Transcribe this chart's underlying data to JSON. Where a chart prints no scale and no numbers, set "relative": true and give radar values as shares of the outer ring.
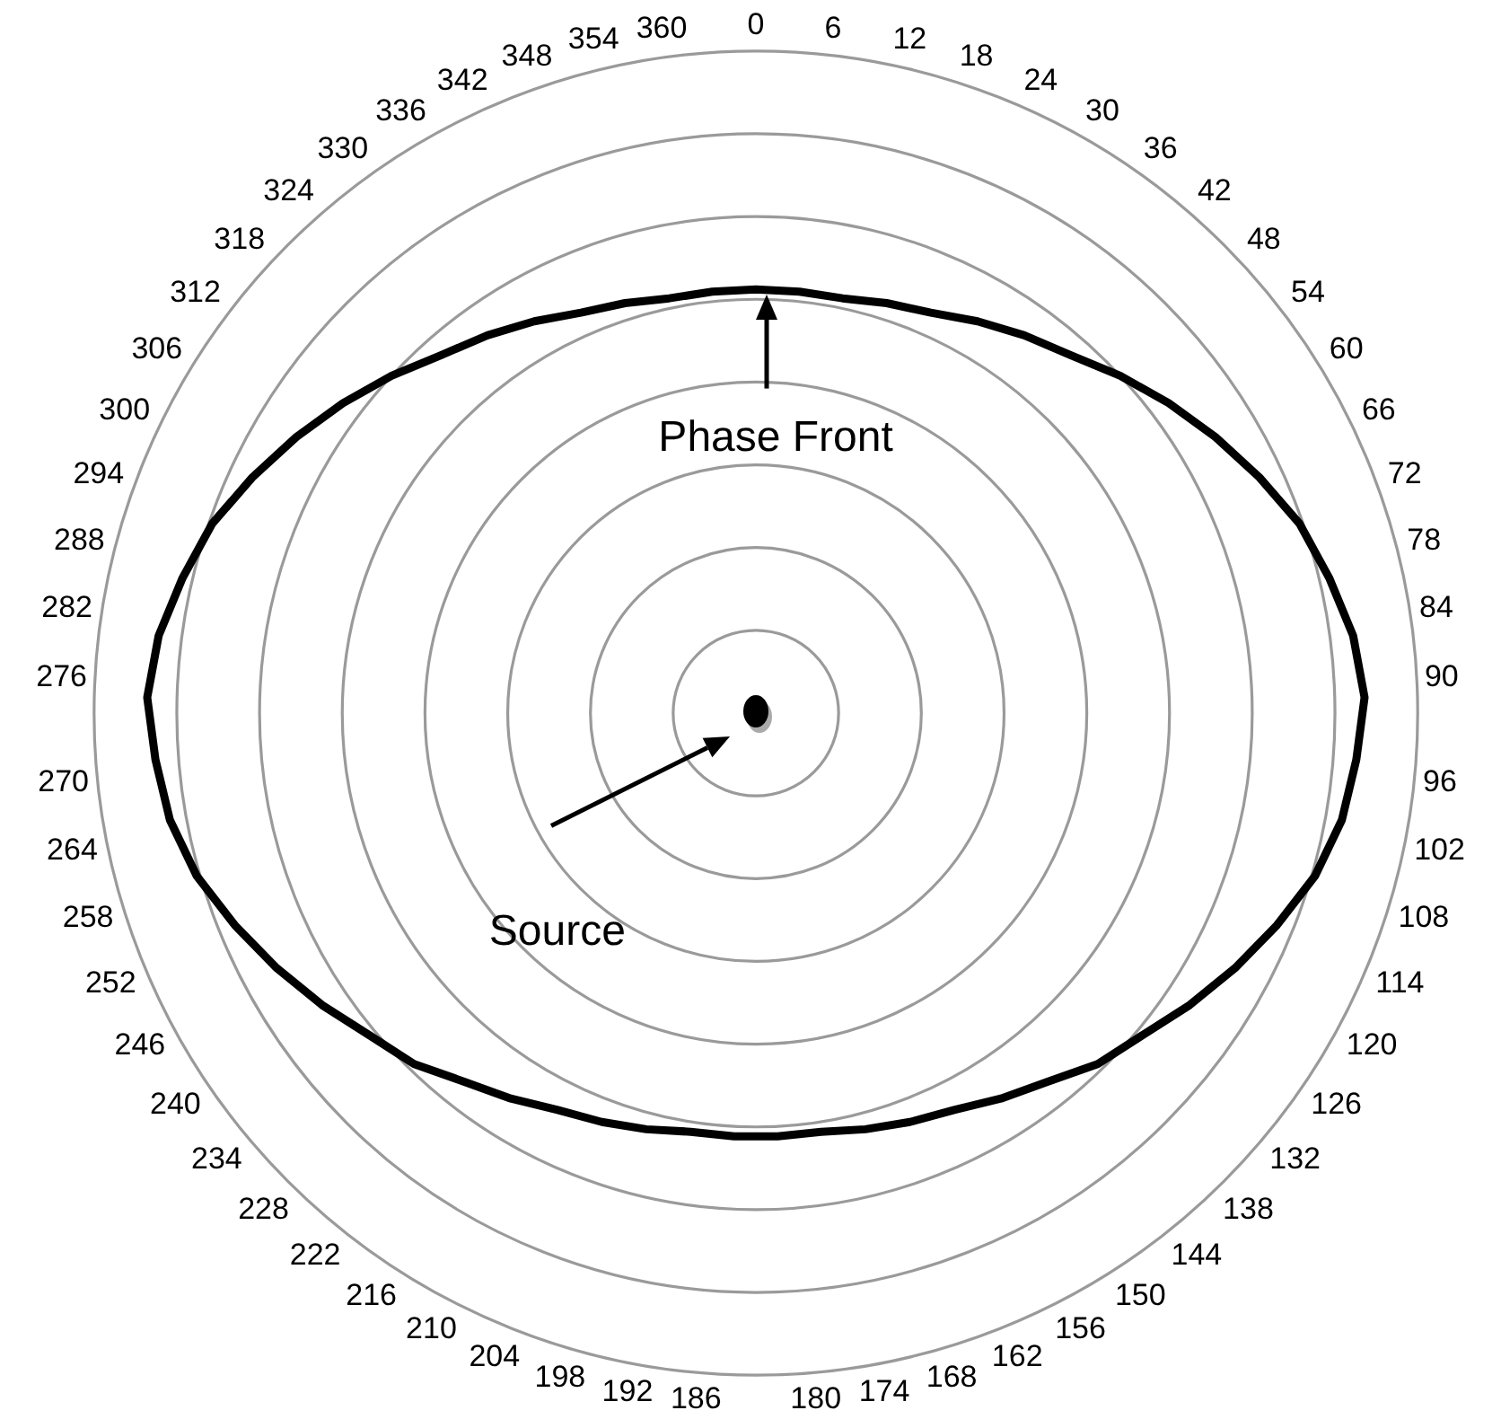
{
  "chart_data": {
    "type": "radar",
    "relative": true,
    "grid": true,
    "legend": false,
    "marker": "none",
    "line_style": "solid",
    "categories": [
      "0",
      "6",
      "12",
      "18",
      "24",
      "30",
      "36",
      "42",
      "48",
      "54",
      "60",
      "66",
      "72",
      "78",
      "84",
      "90",
      "96",
      "102",
      "108",
      "114",
      "120",
      "126",
      "132",
      "138",
      "144",
      "150",
      "156",
      "162",
      "168",
      "174",
      "180",
      "186",
      "192",
      "198",
      "204",
      "210",
      "216",
      "222",
      "228",
      "234",
      "240",
      "246",
      "252",
      "258",
      "264",
      "270",
      "276",
      "282",
      "288",
      "294",
      "300",
      "306",
      "312",
      "318",
      "324",
      "330",
      "336",
      "342",
      "348",
      "354",
      "360"
    ],
    "series": [
      {
        "color": "#000000",
        "values": [
          0.64,
          0.64,
          0.64,
          0.65,
          0.66,
          0.68,
          0.7,
          0.72,
          0.75,
          0.78,
          0.81,
          0.84,
          0.87,
          0.89,
          0.91,
          0.92,
          0.91,
          0.9,
          0.88,
          0.85,
          0.82,
          0.79,
          0.76,
          0.74,
          0.71,
          0.69,
          0.67,
          0.66,
          0.65,
          0.64,
          0.64,
          0.64,
          0.64,
          0.65,
          0.66,
          0.67,
          0.69,
          0.71,
          0.74,
          0.76,
          0.79,
          0.82,
          0.85,
          0.88,
          0.9,
          0.91,
          0.92,
          0.91,
          0.89,
          0.87,
          0.84,
          0.81,
          0.78,
          0.75,
          0.72,
          0.7,
          0.68,
          0.66,
          0.65,
          0.64,
          0.64
        ]
      }
    ],
    "annotations": [
      "Phase Front",
      "Source"
    ]
  }
}
